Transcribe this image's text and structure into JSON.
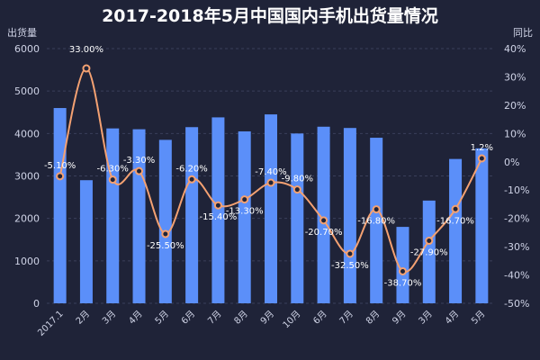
{
  "chart_data": {
    "type": "bar+line",
    "title": "2017-2018年5月中国国内手机出货量情况",
    "ylabel_left": "出货量",
    "ylabel_right": "同比",
    "categories": [
      "2017.1",
      "2月",
      "3月",
      "4月",
      "5月",
      "6月",
      "7月",
      "8月",
      "9月",
      "10月",
      "6月",
      "7月",
      "8月",
      "9月",
      "3月",
      "4月",
      "5月"
    ],
    "left_axis": {
      "ylim": [
        0,
        6000
      ],
      "ticks": [
        0,
        1000,
        2000,
        3000,
        4000,
        5000,
        6000
      ]
    },
    "right_axis": {
      "ylim": [
        -50,
        40
      ],
      "ticks": [
        "40%",
        "30%",
        "20%",
        "10%",
        "0%",
        "-10%",
        "-20%",
        "-30%",
        "-40%",
        "-50%"
      ]
    },
    "series": [
      {
        "type": "bar",
        "color": "#5b8ff9",
        "values": [
          4600,
          2900,
          4120,
          4100,
          3850,
          4150,
          4380,
          4050,
          4450,
          4000,
          4160,
          4130,
          3900,
          1800,
          2420,
          3400,
          3650
        ]
      },
      {
        "type": "line",
        "color": "#f4a172",
        "values": [
          -5.1,
          33.0,
          -6.3,
          -3.3,
          -25.5,
          -6.2,
          -15.4,
          -13.3,
          -7.4,
          -9.8,
          -20.7,
          -32.5,
          -16.8,
          -38.7,
          -27.9,
          -16.7,
          1.2
        ],
        "labels": [
          "-5.10%",
          "33.00%",
          "-6.30%",
          "-3.30%",
          "-25.50%",
          "-6.20%",
          "-15.40%",
          "-13.30%",
          "-7.40%",
          "-9.80%",
          "-20.70%",
          "-32.50%",
          "-16.80%",
          "-38.70%",
          "-27.90%",
          "-16.70%",
          "1.2%"
        ]
      }
    ],
    "grid": true
  }
}
